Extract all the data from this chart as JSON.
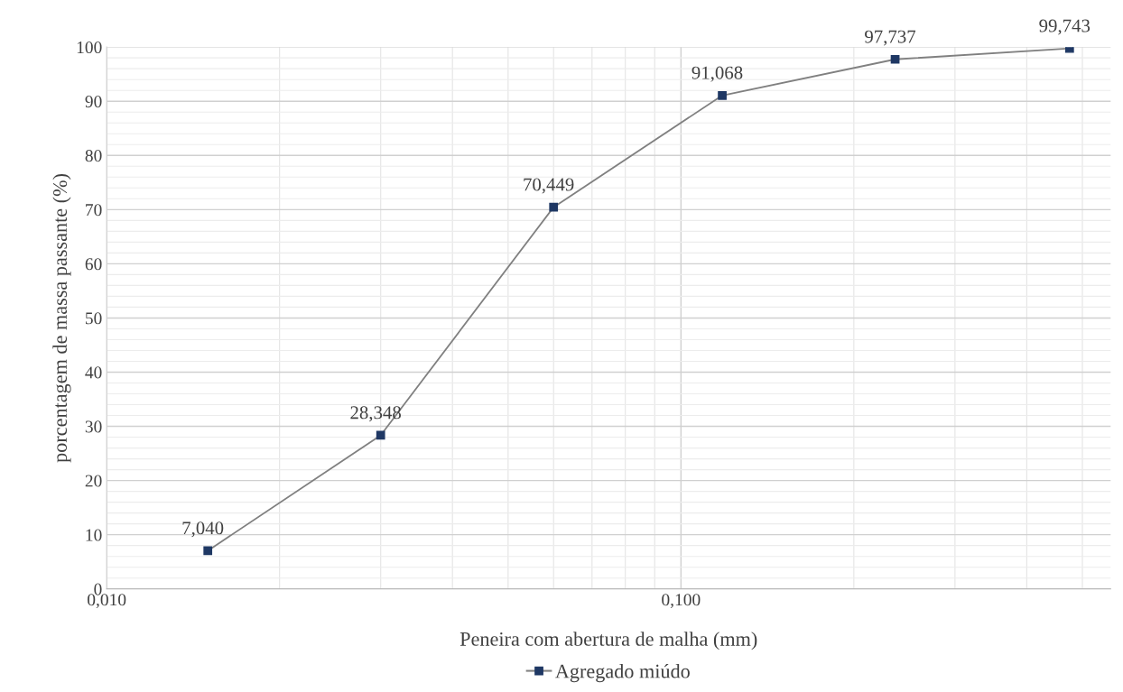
{
  "chart_data": {
    "type": "line",
    "xlabel": "Peneira com abertura de malha (mm)",
    "ylabel": "porcentagem de massa passante (%)",
    "x": [
      0.015,
      0.03,
      0.06,
      0.118,
      0.236,
      0.475
    ],
    "series": [
      {
        "name": "Agregado miúdo",
        "color": "#1f3864",
        "values": [
          7.04,
          28.348,
          70.449,
          91.068,
          97.737,
          99.743
        ],
        "value_labels": [
          "7,040",
          "28,348",
          "70,449",
          "91,068",
          "97,737",
          "99,743"
        ]
      }
    ],
    "log": "x",
    "xlim": [
      0.01,
      0.56
    ],
    "xticks": [
      {
        "value": 0.01,
        "label": "0,010"
      },
      {
        "value": 0.1,
        "label": "0,100"
      }
    ],
    "ylim": [
      0,
      100
    ],
    "yticks": [
      0,
      10,
      20,
      30,
      40,
      50,
      60,
      70,
      80,
      90,
      100
    ],
    "grid": true,
    "legend": "bottom",
    "marker": "square",
    "line_style": "solid"
  }
}
